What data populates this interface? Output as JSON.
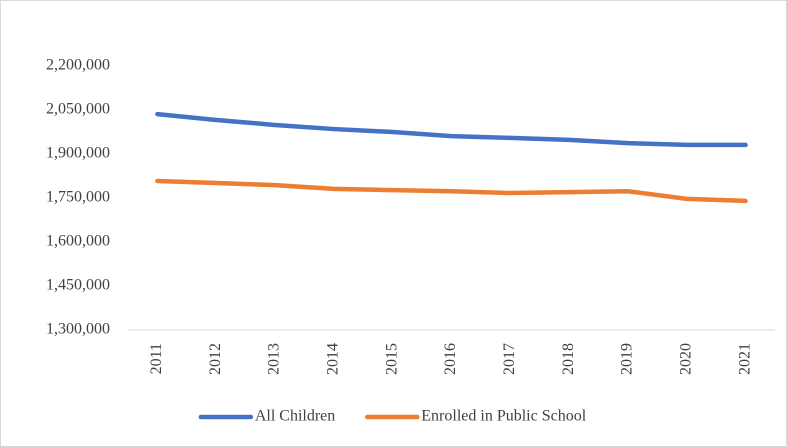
{
  "chart_data": {
    "type": "line",
    "categories": [
      "2011",
      "2012",
      "2013",
      "2014",
      "2015",
      "2016",
      "2017",
      "2018",
      "2019",
      "2020",
      "2021"
    ],
    "series": [
      {
        "name": "All Children",
        "color": "#4472c4",
        "values": [
          2036000,
          2016000,
          1999000,
          1985000,
          1975000,
          1961000,
          1955000,
          1948000,
          1937000,
          1931000,
          1931000
        ]
      },
      {
        "name": "Enrolled in Public School",
        "color": "#ed7d31",
        "values": [
          1808000,
          1801000,
          1794000,
          1781000,
          1777000,
          1773000,
          1767000,
          1770000,
          1773000,
          1747000,
          1740000
        ]
      }
    ],
    "ylim": [
      1300000,
      2200000
    ],
    "yticks": [
      {
        "value": 1300000,
        "label": "1,300,000"
      },
      {
        "value": 1450000,
        "label": "1,450,000"
      },
      {
        "value": 1600000,
        "label": "1,600,000"
      },
      {
        "value": 1750000,
        "label": "1,750,000"
      },
      {
        "value": 1900000,
        "label": "1,900,000"
      },
      {
        "value": 2050000,
        "label": "2,050,000"
      },
      {
        "value": 2200000,
        "label": "2,200,000"
      }
    ],
    "grid": false,
    "legend": "bottom"
  }
}
